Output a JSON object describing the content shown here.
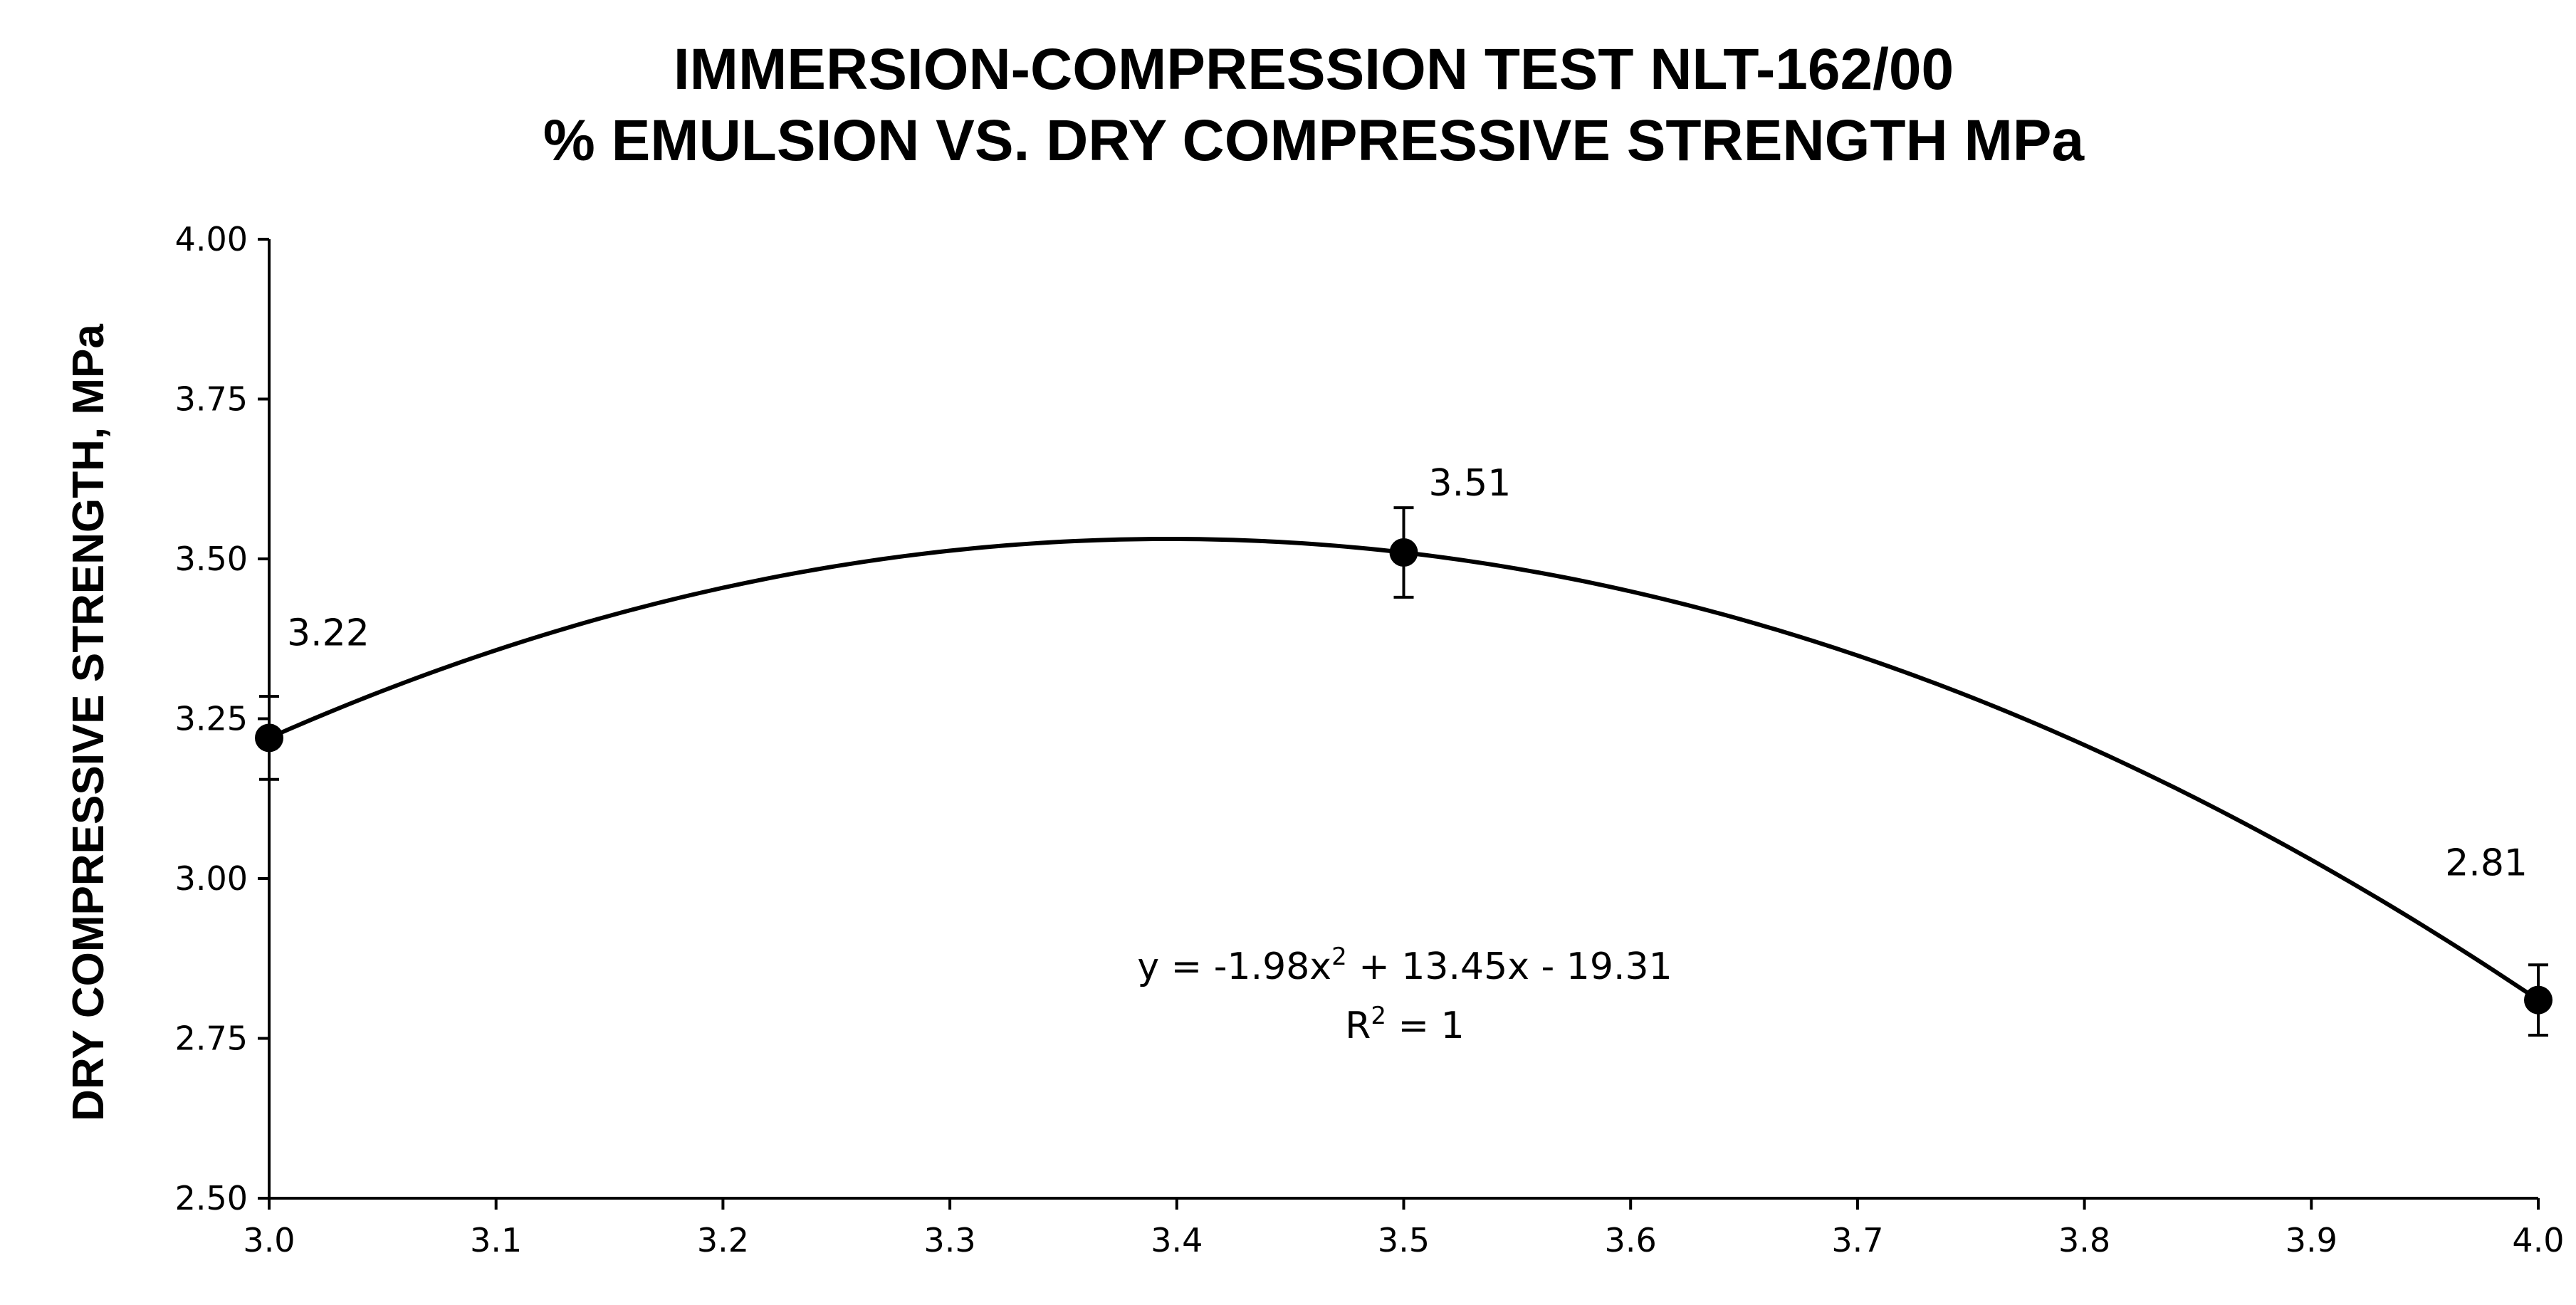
{
  "chart_data": {
    "type": "scatter",
    "title_lines": [
      "IMMERSION-COMPRESSION TEST NLT-162/00",
      "% EMULSION VS. DRY COMPRESSIVE STRENGTH MPa"
    ],
    "xlabel": "",
    "ylabel": "DRY COMPRESSIVE STRENGTH, MPa",
    "xlim": [
      3.0,
      4.0
    ],
    "ylim": [
      2.5,
      4.0
    ],
    "x_ticks": [
      "3.0",
      "3.1",
      "3.2",
      "3.3",
      "3.4",
      "3.5",
      "3.6",
      "3.7",
      "3.8",
      "3.9",
      "4.0"
    ],
    "y_ticks": [
      "2.50",
      "2.75",
      "3.00",
      "3.25",
      "3.50",
      "3.75",
      "4.00"
    ],
    "grid": false,
    "points": [
      {
        "x": 3.0,
        "y": 3.22,
        "label": "3.22",
        "err": 0.065
      },
      {
        "x": 3.5,
        "y": 3.51,
        "label": "3.51",
        "err": 0.07
      },
      {
        "x": 4.0,
        "y": 2.81,
        "label": "2.81",
        "err": 0.055
      }
    ],
    "trendline": {
      "type": "polynomial",
      "coefficients": [
        -1.98,
        13.45,
        -19.31
      ],
      "equation_parts": [
        "y = -1.98x",
        "2",
        " + 13.45x - 19.31"
      ],
      "r2_parts": [
        "R",
        "2",
        " = 1"
      ]
    },
    "colors": {
      "line": "#000000",
      "marker": "#000000"
    }
  }
}
